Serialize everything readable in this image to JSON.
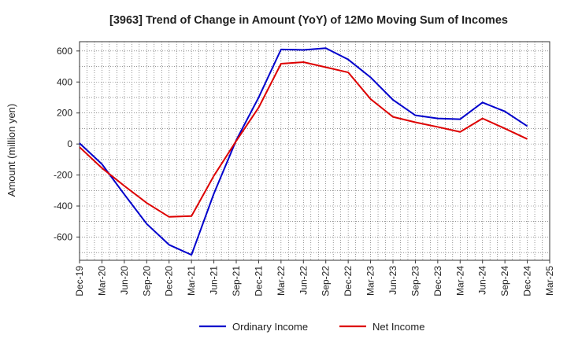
{
  "chart_data": {
    "type": "line",
    "title": "[3963]  Trend of Change in Amount (YoY) of 12Mo Moving Sum of Incomes",
    "xlabel": "",
    "ylabel": "Amount (million yen)",
    "categories": [
      "Dec-19",
      "Mar-20",
      "Jun-20",
      "Sep-20",
      "Dec-20",
      "Mar-21",
      "Jun-21",
      "Sep-21",
      "Dec-21",
      "Mar-22",
      "Jun-22",
      "Sep-22",
      "Dec-22",
      "Mar-23",
      "Jun-23",
      "Sep-23",
      "Dec-23",
      "Mar-24",
      "Jun-24",
      "Sep-24",
      "Dec-24",
      "Mar-25"
    ],
    "ylim": [
      -750,
      660
    ],
    "yticks": [
      -600,
      -400,
      -200,
      0,
      200,
      400,
      600
    ],
    "grid": true,
    "legend_position": "bottom",
    "series": [
      {
        "name": "Ordinary Income",
        "color": "#0000cc",
        "values": [
          5,
          -130,
          -325,
          -515,
          -650,
          -715,
          -320,
          25,
          300,
          610,
          607,
          618,
          545,
          430,
          285,
          185,
          165,
          160,
          268,
          210,
          115,
          null
        ]
      },
      {
        "name": "Net Income",
        "color": "#dd0000",
        "values": [
          -20,
          -155,
          -270,
          -380,
          -470,
          -465,
          -205,
          20,
          235,
          518,
          528,
          495,
          462,
          290,
          175,
          140,
          110,
          78,
          165,
          100,
          32,
          null
        ]
      }
    ]
  }
}
